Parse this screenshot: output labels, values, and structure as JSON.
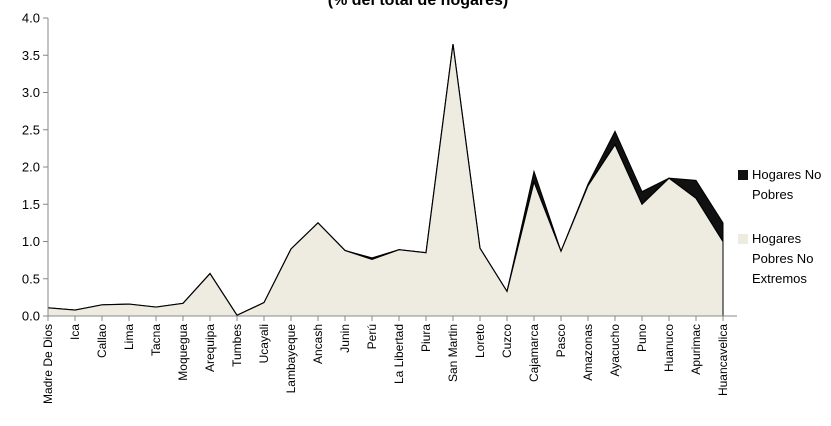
{
  "chart_data": {
    "type": "area",
    "stacked": true,
    "title": "(% del total de hogares)",
    "xlabel": "",
    "ylabel": "",
    "ylim": [
      0,
      4.0
    ],
    "yticks": [
      "0.0",
      "0.5",
      "1.0",
      "1.5",
      "2.0",
      "2.5",
      "3.0",
      "3.5",
      "4.0"
    ],
    "grid": false,
    "legend_position": "right",
    "categories": [
      "Madre De Dios",
      "Ica",
      "Callao",
      "Lima",
      "Tacna",
      "Moquegua",
      "Arequipa",
      "Tumbes",
      "Ucayali",
      "Lambayeque",
      "Ancash",
      "Junin",
      "Perú",
      "La Libertad",
      "Piura",
      "San Martin",
      "Loreto",
      "Cuzco",
      "Cajamarca",
      "Pasco",
      "Amazonas",
      "Ayacucho",
      "Puno",
      "Huanuco",
      "Apurimac",
      "Huancavelica"
    ],
    "series": [
      {
        "name": "Hogares Pobres No Extremos",
        "color": "#eeebe0",
        "values": [
          0.11,
          0.08,
          0.15,
          0.16,
          0.12,
          0.17,
          0.57,
          0.01,
          0.18,
          0.9,
          1.25,
          0.88,
          0.76,
          0.89,
          0.85,
          3.65,
          0.91,
          0.33,
          1.8,
          0.87,
          1.75,
          2.3,
          1.5,
          1.85,
          1.58,
          1.0
        ]
      },
      {
        "name": "Hogares No Pobres",
        "color": "#111111",
        "values": [
          0,
          0,
          0,
          0,
          0,
          0,
          0,
          0,
          0,
          0,
          0,
          0,
          0.02,
          0,
          0,
          0,
          0,
          0,
          0.14,
          0,
          0.02,
          0.18,
          0.17,
          0,
          0.24,
          0.25
        ]
      }
    ],
    "legend": {
      "no_pobres_lines": [
        "Hogares No",
        "Pobres"
      ],
      "pobres_lines": [
        "Hogares",
        "Pobres No",
        "Extremos"
      ]
    }
  }
}
